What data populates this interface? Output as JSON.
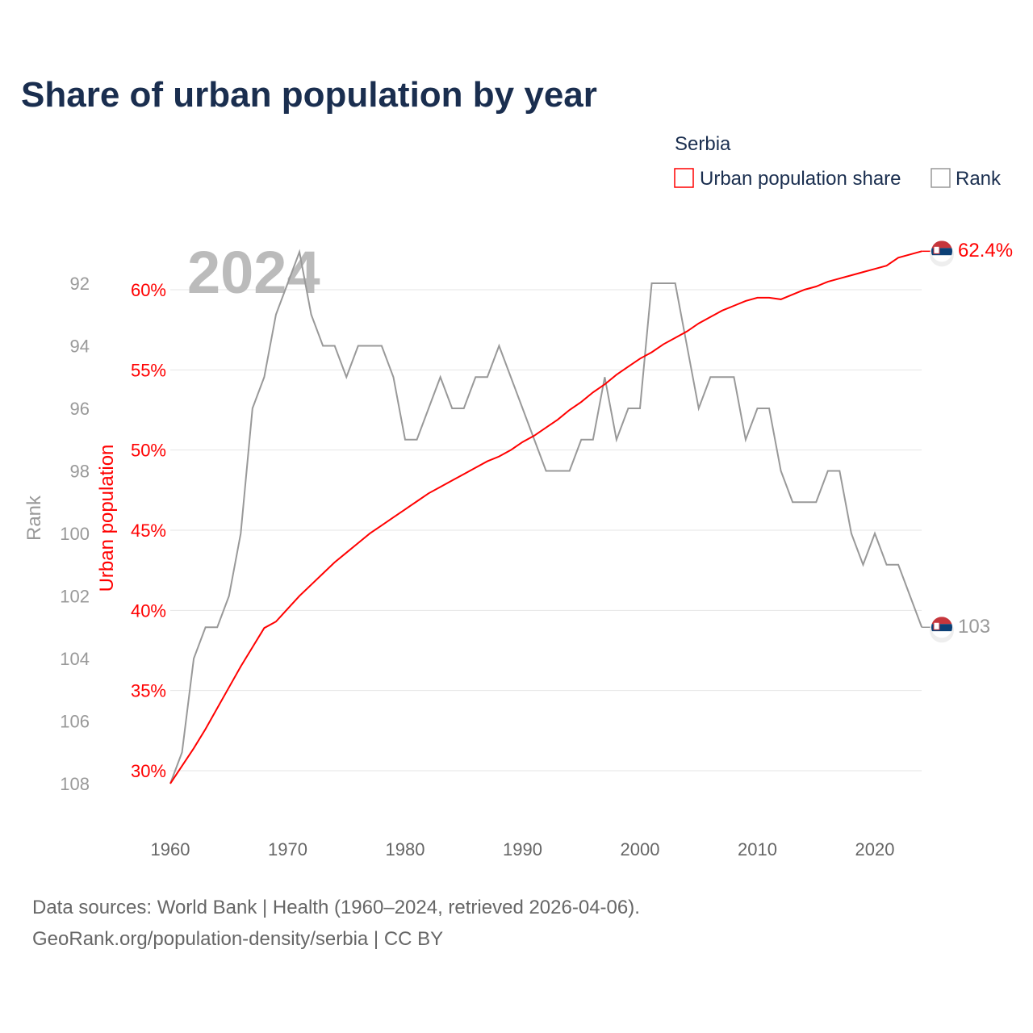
{
  "chart_data": {
    "type": "line",
    "title": "Share of urban population by year",
    "watermark_year": "2024",
    "legend": {
      "title": "Serbia",
      "placement": "top-right",
      "entries": [
        "Urban population share",
        "Rank"
      ]
    },
    "xlabel": "",
    "ylabel_left": "Urban population",
    "ylabel_rank": "Rank",
    "xlim": [
      1960,
      2024
    ],
    "ylim_left": [
      29,
      63
    ],
    "ylim_rank": [
      108,
      91
    ],
    "x_ticks": [
      "1960",
      "1970",
      "1980",
      "1990",
      "2000",
      "2010",
      "2020"
    ],
    "left_ticks": [
      "30%",
      "35%",
      "40%",
      "45%",
      "50%",
      "55%",
      "60%"
    ],
    "rank_ticks": [
      "92",
      "94",
      "96",
      "98",
      "100",
      "102",
      "104",
      "106",
      "108"
    ],
    "colors": {
      "urban": "#ff0000",
      "rank": "#999999",
      "title": "#1a2e4f"
    },
    "x": [
      1960,
      1961,
      1962,
      1963,
      1964,
      1965,
      1966,
      1967,
      1968,
      1969,
      1970,
      1971,
      1972,
      1973,
      1974,
      1975,
      1976,
      1977,
      1978,
      1979,
      1980,
      1981,
      1982,
      1983,
      1984,
      1985,
      1986,
      1987,
      1988,
      1989,
      1990,
      1991,
      1992,
      1993,
      1994,
      1995,
      1996,
      1997,
      1998,
      1999,
      2000,
      2001,
      2002,
      2003,
      2004,
      2005,
      2006,
      2007,
      2008,
      2009,
      2010,
      2011,
      2012,
      2013,
      2014,
      2015,
      2016,
      2017,
      2018,
      2019,
      2020,
      2021,
      2022,
      2023,
      2024
    ],
    "series": [
      {
        "name": "Urban population share",
        "unit": "%",
        "values": [
          29.2,
          30.3,
          31.4,
          32.6,
          33.9,
          35.2,
          36.5,
          37.7,
          38.9,
          39.3,
          40.1,
          40.9,
          41.6,
          42.3,
          43.0,
          43.6,
          44.2,
          44.8,
          45.3,
          45.8,
          46.3,
          46.8,
          47.3,
          47.7,
          48.1,
          48.5,
          48.9,
          49.3,
          49.6,
          50.0,
          50.5,
          50.9,
          51.4,
          51.9,
          52.5,
          53.0,
          53.6,
          54.1,
          54.7,
          55.2,
          55.7,
          56.1,
          56.6,
          57.0,
          57.4,
          57.9,
          58.3,
          58.7,
          59.0,
          59.3,
          59.5,
          59.5,
          59.4,
          59.7,
          60.0,
          60.2,
          60.5,
          60.7,
          60.9,
          61.1,
          61.3,
          61.5,
          62.0,
          62.2,
          62.4
        ]
      },
      {
        "name": "Rank",
        "values": [
          108,
          107,
          104,
          103,
          103,
          102,
          100,
          96,
          95,
          93,
          92,
          91,
          93,
          94,
          94,
          95,
          94,
          94,
          94,
          95,
          97,
          97,
          96,
          95,
          96,
          96,
          95,
          95,
          94,
          95,
          96,
          97,
          98,
          98,
          98,
          97,
          97,
          95,
          97,
          96,
          96,
          92,
          92,
          92,
          94,
          96,
          95,
          95,
          95,
          97,
          96,
          96,
          98,
          99,
          99,
          99,
          98,
          98,
          100,
          101,
          100,
          101,
          101,
          102,
          103
        ]
      }
    ],
    "end_labels": {
      "urban": "62.4%",
      "rank": "103"
    }
  },
  "sources": {
    "line1": "Data sources: World Bank | Health (1960–2024, retrieved 2026-04-06).",
    "line2": "GeoRank.org/population-density/serbia | CC BY"
  }
}
